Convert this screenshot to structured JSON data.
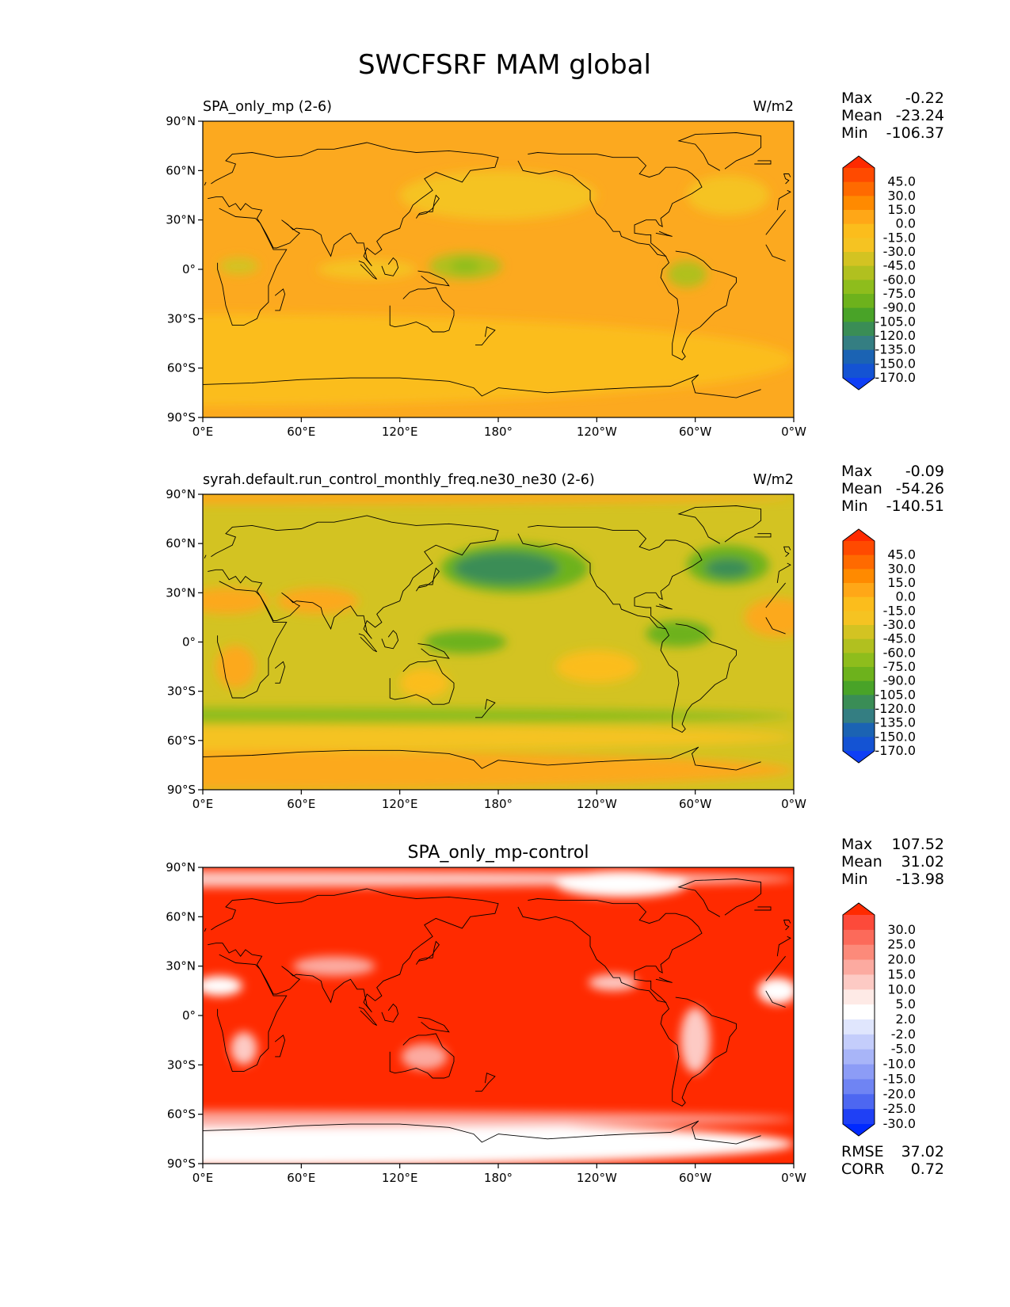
{
  "figure": {
    "title": "SWCFSRF MAM global"
  },
  "axes": {
    "lat_ticks": [
      "90°N",
      "60°N",
      "30°N",
      "0°",
      "30°S",
      "60°S",
      "90°S"
    ],
    "lon_ticks": [
      "0°E",
      "60°E",
      "120°E",
      "180°",
      "120°W",
      "60°W",
      "0°W"
    ]
  },
  "panels": [
    {
      "id": "test",
      "left_title": "SPA_only_mp (2-6)",
      "center_title": "",
      "units": "W/m2",
      "stats": [
        {
          "label": "Max",
          "value": "-0.22"
        },
        {
          "label": "Mean",
          "value": "-23.24"
        },
        {
          "label": "Min",
          "value": "-106.37"
        }
      ],
      "extra_stats": [],
      "colorbar": {
        "labels": [
          "45.0",
          "30.0",
          "15.0",
          "0.0",
          "-15.0",
          "-30.0",
          "-45.0",
          "-60.0",
          "-75.0",
          "-90.0",
          "-105.0",
          "-120.0",
          "-135.0",
          "-150.0",
          "-170.0"
        ],
        "colors": [
          "#ff2a00",
          "#ff4a00",
          "#ff6a00",
          "#ff8a00",
          "#ffa717",
          "#fbbd1c",
          "#f5c322",
          "#d3c322",
          "#b1c01f",
          "#8ebd1c",
          "#6db21c",
          "#49a328",
          "#3a8d56",
          "#347e82",
          "#1b63b3",
          "#1453d3",
          "#0f3ff5"
        ],
        "extend": "both"
      },
      "base_color": "#fca91f",
      "blobs": [
        {
          "lon": 0,
          "lat": -55,
          "rx": 360,
          "ry": 28,
          "color": "#fbbd1c"
        },
        {
          "lon": 180,
          "lat": 45,
          "rx": 60,
          "ry": 15,
          "color": "#f5c322"
        },
        {
          "lon": 320,
          "lat": 45,
          "rx": 25,
          "ry": 12,
          "color": "#f5c322"
        },
        {
          "lon": 160,
          "lat": 2,
          "rx": 22,
          "ry": 8,
          "color": "#b1c01f"
        },
        {
          "lon": 160,
          "lat": 2,
          "rx": 9,
          "ry": 4,
          "color": "#8ebd1c"
        },
        {
          "lon": 295,
          "lat": -3,
          "rx": 12,
          "ry": 8,
          "color": "#b1c01f"
        },
        {
          "lon": 22,
          "lat": 2,
          "rx": 12,
          "ry": 5,
          "color": "#d3c322"
        },
        {
          "lon": 100,
          "lat": 0,
          "rx": 30,
          "ry": 6,
          "color": "#f5c322"
        }
      ]
    },
    {
      "id": "reference",
      "left_title": "syrah.default.run_control_monthly_freq.ne30_ne30 (2-6)",
      "center_title": "",
      "units": "W/m2",
      "stats": [
        {
          "label": "Max",
          "value": "-0.09"
        },
        {
          "label": "Mean",
          "value": "-54.26"
        },
        {
          "label": "Min",
          "value": "-140.51"
        }
      ],
      "extra_stats": [],
      "colorbar": {
        "labels": [
          "45.0",
          "30.0",
          "15.0",
          "0.0",
          "-15.0",
          "-30.0",
          "-45.0",
          "-60.0",
          "-75.0",
          "-90.0",
          "-105.0",
          "-120.0",
          "-135.0",
          "-150.0",
          "-170.0"
        ],
        "colors": [
          "#ff2a00",
          "#ff4a00",
          "#ff6a00",
          "#ff8a00",
          "#ffa717",
          "#fbbd1c",
          "#f5c322",
          "#d3c322",
          "#b1c01f",
          "#8ebd1c",
          "#6db21c",
          "#49a328",
          "#3a8d56",
          "#347e82",
          "#1b63b3",
          "#1453d3",
          "#0f3ff5"
        ],
        "extend": "both"
      },
      "base_color": "#d3c322",
      "blobs": [
        {
          "lon": 0,
          "lat": -78,
          "rx": 360,
          "ry": 12,
          "color": "#fca91f"
        },
        {
          "lon": 0,
          "lat": 88,
          "rx": 360,
          "ry": 4,
          "color": "#fca91f"
        },
        {
          "lon": 0,
          "lat": -58,
          "rx": 360,
          "ry": 8,
          "color": "#f5c322"
        },
        {
          "lon": 0,
          "lat": -45,
          "rx": 360,
          "ry": 5,
          "color": "#8ebd1c"
        },
        {
          "lon": 190,
          "lat": 45,
          "rx": 45,
          "ry": 15,
          "color": "#6db21c"
        },
        {
          "lon": 185,
          "lat": 45,
          "rx": 32,
          "ry": 10,
          "color": "#3a8d56"
        },
        {
          "lon": 320,
          "lat": 47,
          "rx": 25,
          "ry": 12,
          "color": "#6db21c"
        },
        {
          "lon": 320,
          "lat": 45,
          "rx": 14,
          "ry": 6,
          "color": "#3a8d56"
        },
        {
          "lon": 20,
          "lat": -15,
          "rx": 12,
          "ry": 13,
          "color": "#fca91f"
        },
        {
          "lon": 135,
          "lat": -25,
          "rx": 15,
          "ry": 9,
          "color": "#fbbd1c"
        },
        {
          "lon": 240,
          "lat": -15,
          "rx": 25,
          "ry": 10,
          "color": "#fbbd1c"
        },
        {
          "lon": 15,
          "lat": 25,
          "rx": 25,
          "ry": 8,
          "color": "#fca91f"
        },
        {
          "lon": 70,
          "lat": 25,
          "rx": 25,
          "ry": 8,
          "color": "#fca91f"
        },
        {
          "lon": 350,
          "lat": 15,
          "rx": 20,
          "ry": 12,
          "color": "#fca91f"
        },
        {
          "lon": 160,
          "lat": 0,
          "rx": 25,
          "ry": 7,
          "color": "#6db21c"
        },
        {
          "lon": 290,
          "lat": 5,
          "rx": 20,
          "ry": 8,
          "color": "#6db21c"
        }
      ]
    },
    {
      "id": "difference",
      "left_title": "",
      "center_title": "SPA_only_mp-control",
      "units": "",
      "stats": [
        {
          "label": "Max",
          "value": "107.52"
        },
        {
          "label": "Mean",
          "value": "31.02"
        },
        {
          "label": "Min",
          "value": "-13.98"
        }
      ],
      "extra_stats": [
        {
          "label": "RMSE",
          "value": "37.02"
        },
        {
          "label": "CORR",
          "value": "0.72"
        }
      ],
      "colorbar": {
        "labels": [
          "30.0",
          "25.0",
          "20.0",
          "15.0",
          "10.0",
          "5.0",
          "2.0",
          "-2.0",
          "-5.0",
          "-10.0",
          "-15.0",
          "-20.0",
          "-25.0",
          "-30.0"
        ],
        "colors": [
          "#ff2a00",
          "#fd4a3a",
          "#fc6a5a",
          "#fc8a7a",
          "#fcaaa0",
          "#fdcac4",
          "#feeae6",
          "#ffffff",
          "#e0e6fd",
          "#c4cdfb",
          "#a8b5f8",
          "#8c9cf6",
          "#6f84f3",
          "#4d67f1",
          "#1f40f5",
          "#0029ff"
        ],
        "extend": "both"
      },
      "base_color": "#ff2a00",
      "blobs": [
        {
          "lon": 0,
          "lat": -78,
          "rx": 360,
          "ry": 14,
          "color": "#ffffff"
        },
        {
          "lon": 0,
          "lat": -63,
          "rx": 360,
          "ry": 5,
          "color": "#fcaaa0"
        },
        {
          "lon": 0,
          "lat": 83,
          "rx": 360,
          "ry": 5,
          "color": "#fdcac4"
        },
        {
          "lon": 80,
          "lat": 30,
          "rx": 25,
          "ry": 6,
          "color": "#fcaaa0"
        },
        {
          "lon": 10,
          "lat": 18,
          "rx": 14,
          "ry": 6,
          "color": "#ffffff"
        },
        {
          "lon": 25,
          "lat": -20,
          "rx": 8,
          "ry": 10,
          "color": "#fdcac4"
        },
        {
          "lon": 135,
          "lat": -25,
          "rx": 14,
          "ry": 8,
          "color": "#fcaaa0"
        },
        {
          "lon": 300,
          "lat": -15,
          "rx": 9,
          "ry": 20,
          "color": "#fdcac4"
        },
        {
          "lon": 250,
          "lat": 20,
          "rx": 15,
          "ry": 5,
          "color": "#fdcac4"
        },
        {
          "lon": 350,
          "lat": 15,
          "rx": 12,
          "ry": 8,
          "color": "#ffffff"
        },
        {
          "lon": 255,
          "lat": 80,
          "rx": 40,
          "ry": 8,
          "color": "#ffffff"
        }
      ]
    }
  ]
}
